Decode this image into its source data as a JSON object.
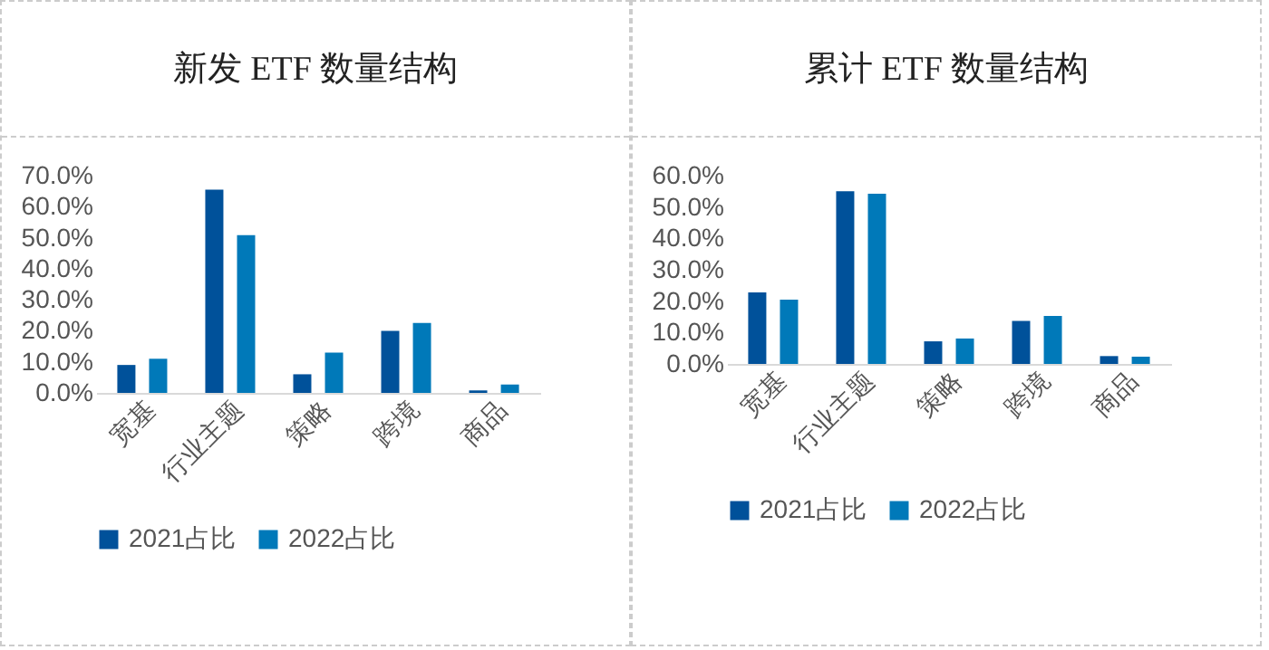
{
  "chart_data": [
    {
      "type": "bar",
      "title": "新发 ETF 数量结构",
      "categories": [
        "宽基",
        "行业主题",
        "策略",
        "跨境",
        "商品"
      ],
      "series": [
        {
          "name": "2021占比",
          "color": "#00519a",
          "values": [
            9,
            65.5,
            6,
            20,
            0.8
          ]
        },
        {
          "name": "2022占比",
          "color": "#0079b9",
          "values": [
            11,
            50.8,
            13,
            22.5,
            2.7
          ]
        }
      ],
      "ylim": [
        0,
        70
      ],
      "yticks": [
        {
          "value": 0,
          "label": "0.0%"
        },
        {
          "value": 10,
          "label": "10.0%"
        },
        {
          "value": 20,
          "label": "20.0%"
        },
        {
          "value": 30,
          "label": "30.0%"
        },
        {
          "value": 40,
          "label": "40.0%"
        },
        {
          "value": 50,
          "label": "50.0%"
        },
        {
          "value": 60,
          "label": "60.0%"
        },
        {
          "value": 70,
          "label": "70.0%"
        }
      ],
      "grid": false,
      "legend": "bottom"
    },
    {
      "type": "bar",
      "title": "累计 ETF 数量结构",
      "categories": [
        "宽基",
        "行业主题",
        "策略",
        "跨境",
        "商品"
      ],
      "series": [
        {
          "name": "2021占比",
          "color": "#00519a",
          "values": [
            22.8,
            55,
            7.2,
            13.7,
            2.5
          ]
        },
        {
          "name": "2022占比",
          "color": "#0079b9",
          "values": [
            20.5,
            54.2,
            8.1,
            15.3,
            2.3
          ]
        }
      ],
      "ylim": [
        0,
        60
      ],
      "yticks": [
        {
          "value": 0,
          "label": "0.0%"
        },
        {
          "value": 10,
          "label": "10.0%"
        },
        {
          "value": 20,
          "label": "20.0%"
        },
        {
          "value": 30,
          "label": "30.0%"
        },
        {
          "value": 40,
          "label": "40.0%"
        },
        {
          "value": 50,
          "label": "50.0%"
        },
        {
          "value": 60,
          "label": "60.0%"
        }
      ],
      "grid": false,
      "legend": "bottom"
    }
  ]
}
